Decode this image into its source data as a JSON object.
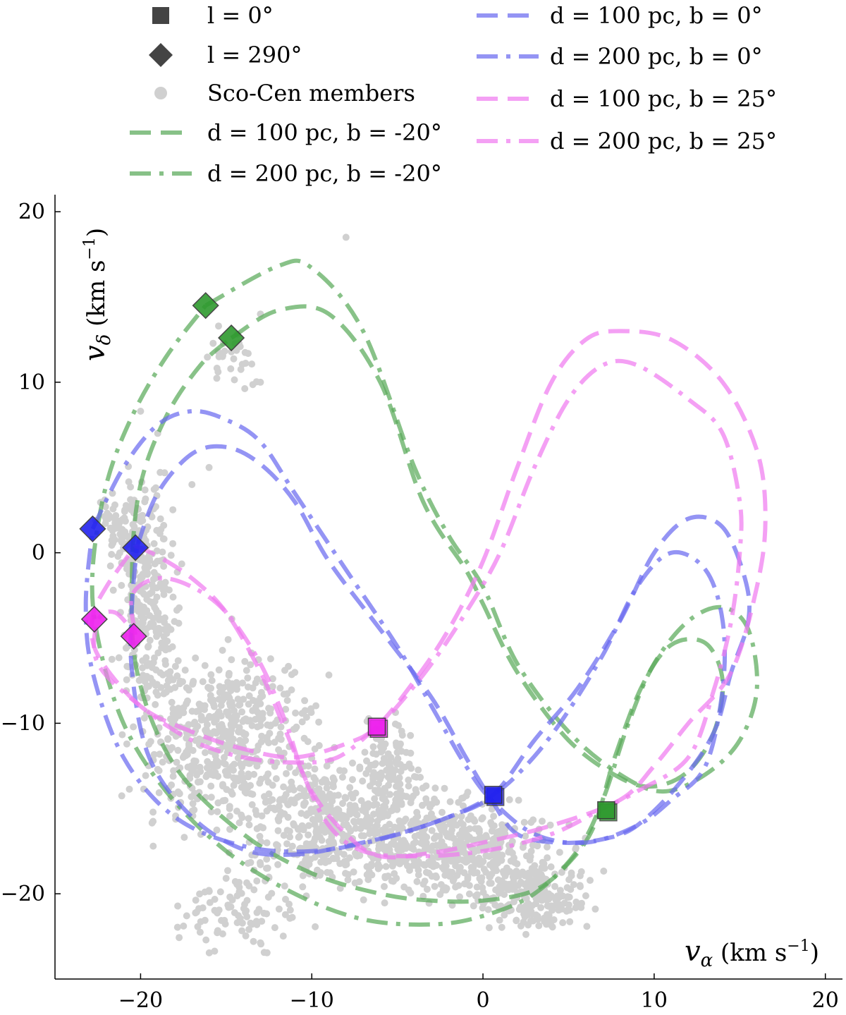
{
  "chart_data": {
    "type": "line",
    "title": "",
    "xlabel": {
      "symbol": "v",
      "sub": "α",
      "unit": "(km s",
      "sup": "−1",
      "close": ")"
    },
    "ylabel": {
      "symbol": "v",
      "sub": "δ",
      "unit": "(km s",
      "sup": "−1",
      "close": ")"
    },
    "xlim": [
      -25,
      21
    ],
    "ylim": [
      -25,
      21
    ],
    "x_ticks": [
      -20,
      -10,
      0,
      10,
      20
    ],
    "y_ticks": [
      -20,
      -10,
      0,
      10,
      20
    ],
    "x_tick_labels": [
      "−20",
      "−10",
      "0",
      "10",
      "20"
    ],
    "y_tick_labels": [
      "−20",
      "−10",
      "0",
      "10",
      "20"
    ],
    "grid": false,
    "legend_placement": "above plot, two columns",
    "colors": {
      "green": "#5aaa5a",
      "blue": "#6b6bf0",
      "magenta": "#f07cf0",
      "members": "#d0d0d0",
      "marker_green": "#2e9a2e",
      "marker_blue": "#2222ee",
      "marker_magenta": "#ee22ee"
    },
    "legend": [
      {
        "label": "l = 0°",
        "kind": "square"
      },
      {
        "label": "l = 290°",
        "kind": "diamond"
      },
      {
        "label": "Sco-Cen members",
        "kind": "dot"
      },
      {
        "label": "d = 100 pc, b = -20°",
        "kind": "dashed",
        "color": "green"
      },
      {
        "label": "d = 200 pc, b = -20°",
        "kind": "dashdot",
        "color": "green"
      },
      {
        "label": "d = 100 pc, b = 0°",
        "kind": "dashed",
        "color": "blue"
      },
      {
        "label": "d = 200 pc, b = 0°",
        "kind": "dashdot",
        "color": "blue"
      },
      {
        "label": "d = 100 pc, b = 25°",
        "kind": "dashed",
        "color": "magenta"
      },
      {
        "label": "d = 200 pc, b = 25°",
        "kind": "dashdot",
        "color": "magenta"
      }
    ],
    "series": [
      {
        "name": "d = 100 pc, b = -20°",
        "color": "green",
        "style": "dashed",
        "points": [
          [
            -14.7,
            12.6
          ],
          [
            -12,
            14.2
          ],
          [
            -9,
            14
          ],
          [
            -6,
            10
          ],
          [
            -3.5,
            3
          ],
          [
            -1,
            -1
          ],
          [
            0,
            -3
          ],
          [
            2,
            -7
          ],
          [
            5,
            -11
          ],
          [
            8,
            -13.2
          ],
          [
            10,
            -13.7
          ],
          [
            12,
            -12.8
          ],
          [
            13.5,
            -10.5
          ],
          [
            14,
            -7.5
          ],
          [
            13,
            -5.3
          ],
          [
            11,
            -5.4
          ],
          [
            9.3,
            -7.8
          ],
          [
            7.7,
            -12
          ],
          [
            6.5,
            -16
          ],
          [
            5,
            -18.2
          ],
          [
            3,
            -19.8
          ],
          [
            0,
            -20.4
          ],
          [
            -3,
            -20.4
          ],
          [
            -6,
            -20
          ],
          [
            -10,
            -18.8
          ],
          [
            -14,
            -16.5
          ],
          [
            -18,
            -12.5
          ],
          [
            -20.2,
            -7
          ],
          [
            -20.5,
            -1
          ],
          [
            -20,
            4
          ],
          [
            -18.5,
            8
          ],
          [
            -16.5,
            11
          ],
          [
            -14.7,
            12.6
          ]
        ]
      },
      {
        "name": "d = 200 pc, b = -20°",
        "color": "green",
        "style": "dashdot",
        "points": [
          [
            -16.2,
            14.5
          ],
          [
            -12,
            16.8
          ],
          [
            -10,
            16.7
          ],
          [
            -7,
            13
          ],
          [
            -4,
            5
          ],
          [
            -2,
            1
          ],
          [
            0,
            -2
          ],
          [
            2,
            -6.5
          ],
          [
            5,
            -10.5
          ],
          [
            8,
            -13
          ],
          [
            10.5,
            -14
          ],
          [
            13,
            -13
          ],
          [
            15,
            -11
          ],
          [
            16,
            -8
          ],
          [
            15.5,
            -4.5
          ],
          [
            14,
            -3.2
          ],
          [
            12,
            -4
          ],
          [
            10,
            -6.5
          ],
          [
            8.5,
            -10
          ],
          [
            7,
            -14.5
          ],
          [
            5.5,
            -17.5
          ],
          [
            3,
            -20
          ],
          [
            0,
            -21.3
          ],
          [
            -3,
            -21.8
          ],
          [
            -7,
            -21.5
          ],
          [
            -11,
            -20
          ],
          [
            -15,
            -17.5
          ],
          [
            -18.5,
            -14
          ],
          [
            -21,
            -10
          ],
          [
            -22.5,
            -5
          ],
          [
            -22.8,
            -1
          ],
          [
            -22,
            4
          ],
          [
            -20.5,
            8
          ],
          [
            -18.5,
            11.5
          ],
          [
            -16.2,
            14.5
          ]
        ]
      },
      {
        "name": "d = 100 pc, b = 0°",
        "color": "blue",
        "style": "dashed",
        "points": [
          [
            -20.2,
            0.4
          ],
          [
            -19,
            3.5
          ],
          [
            -17,
            5.8
          ],
          [
            -15,
            6.2
          ],
          [
            -13,
            5.2
          ],
          [
            -11,
            3
          ],
          [
            -9,
            -0.5
          ],
          [
            -6,
            -4.5
          ],
          [
            -3,
            -8.5
          ],
          [
            -1,
            -12
          ],
          [
            0.5,
            -14.5
          ],
          [
            2,
            -16.5
          ],
          [
            4.5,
            -17
          ],
          [
            7,
            -16.8
          ],
          [
            9,
            -16
          ],
          [
            11.5,
            -13.5
          ],
          [
            13.5,
            -10.5
          ],
          [
            14.5,
            -7
          ],
          [
            15.5,
            -4
          ],
          [
            15.3,
            -1.5
          ],
          [
            14,
            1.5
          ],
          [
            12,
            2
          ],
          [
            10,
            0
          ],
          [
            8,
            -4
          ],
          [
            5.5,
            -8
          ],
          [
            3,
            -11
          ],
          [
            0.6,
            -14.2
          ],
          [
            -2,
            -15.5
          ],
          [
            -5,
            -16.5
          ],
          [
            -8,
            -17.2
          ],
          [
            -11,
            -17.7
          ],
          [
            -14,
            -17.4
          ],
          [
            -17,
            -15.5
          ],
          [
            -19.5,
            -12
          ],
          [
            -20.5,
            -7
          ],
          [
            -20.5,
            -3
          ],
          [
            -20.2,
            0.4
          ]
        ]
      },
      {
        "name": "d = 200 pc, b = 0°",
        "color": "blue",
        "style": "dashdot",
        "points": [
          [
            -22.8,
            1.4
          ],
          [
            -21,
            5
          ],
          [
            -19,
            7.5
          ],
          [
            -17,
            8.3
          ],
          [
            -15,
            7.8
          ],
          [
            -13,
            6.5
          ],
          [
            -11,
            3.5
          ],
          [
            -8,
            -1
          ],
          [
            -5,
            -5.5
          ],
          [
            -3,
            -9
          ],
          [
            -1,
            -12.5
          ],
          [
            0.5,
            -14.5
          ],
          [
            3,
            -16.5
          ],
          [
            6,
            -17
          ],
          [
            9,
            -16
          ],
          [
            11,
            -14.5
          ],
          [
            13,
            -12.5
          ],
          [
            14,
            -8
          ],
          [
            14,
            -4
          ],
          [
            13,
            -1
          ],
          [
            11,
            0
          ],
          [
            9,
            -2
          ],
          [
            7,
            -6
          ],
          [
            4.5,
            -10
          ],
          [
            2.5,
            -12.5
          ],
          [
            0.6,
            -14.2
          ],
          [
            -2,
            -15.5
          ],
          [
            -6,
            -16.8
          ],
          [
            -10,
            -17.5
          ],
          [
            -14,
            -17.2
          ],
          [
            -18,
            -15.5
          ],
          [
            -21,
            -12
          ],
          [
            -22.8,
            -7
          ],
          [
            -23.2,
            -3
          ],
          [
            -22.8,
            1.4
          ]
        ]
      },
      {
        "name": "d = 100 pc, b = 25°",
        "color": "magenta",
        "style": "dashed",
        "points": [
          [
            -20.3,
            0.4
          ],
          [
            -19,
            -0.2
          ],
          [
            -17,
            -1.5
          ],
          [
            -15,
            -3.5
          ],
          [
            -13,
            -7
          ],
          [
            -11.5,
            -10.5
          ],
          [
            -10,
            -14
          ],
          [
            -8,
            -16.5
          ],
          [
            -6,
            -17.8
          ],
          [
            -3,
            -17.6
          ],
          [
            0,
            -17
          ],
          [
            4,
            -16
          ],
          [
            8,
            -14.5
          ],
          [
            10,
            -12.5
          ],
          [
            12,
            -10
          ],
          [
            14.5,
            -7
          ],
          [
            16,
            -2
          ],
          [
            16.5,
            2
          ],
          [
            16,
            6
          ],
          [
            14,
            10
          ],
          [
            11,
            12.5
          ],
          [
            8,
            13
          ],
          [
            6,
            12.5
          ],
          [
            4,
            10
          ],
          [
            2,
            5
          ],
          [
            0,
            -0.5
          ],
          [
            -2,
            -4.5
          ],
          [
            -4,
            -7.5
          ],
          [
            -6.2,
            -10.2
          ],
          [
            -8,
            -11.2
          ],
          [
            -11,
            -12
          ],
          [
            -14,
            -11.5
          ],
          [
            -17,
            -10.5
          ],
          [
            -20,
            -9
          ],
          [
            -22.5,
            -6
          ],
          [
            -22.8,
            -3.8
          ],
          [
            -22,
            -2
          ],
          [
            -20.3,
            0.4
          ]
        ]
      },
      {
        "name": "d = 200 pc, b = 25°",
        "color": "magenta",
        "style": "dashdot",
        "points": [
          [
            -20.3,
            -4.8
          ],
          [
            -20.5,
            -2.5
          ],
          [
            -19,
            -1.5
          ],
          [
            -17,
            -2
          ],
          [
            -15,
            -3.5
          ],
          [
            -13,
            -6.5
          ],
          [
            -11.5,
            -10
          ],
          [
            -10.5,
            -13
          ],
          [
            -9,
            -16
          ],
          [
            -7,
            -17.5
          ],
          [
            -4,
            -17.8
          ],
          [
            0,
            -17.5
          ],
          [
            4,
            -16.5
          ],
          [
            7,
            -15
          ],
          [
            9,
            -14
          ],
          [
            12,
            -12
          ],
          [
            13.5,
            -8
          ],
          [
            14.5,
            -4
          ],
          [
            15,
            0
          ],
          [
            15,
            3
          ],
          [
            14,
            7
          ],
          [
            12,
            9
          ],
          [
            9,
            11
          ],
          [
            7,
            11
          ],
          [
            5,
            9
          ],
          [
            3,
            5
          ],
          [
            1,
            0
          ],
          [
            -1,
            -3.5
          ],
          [
            -3,
            -6.5
          ],
          [
            -5,
            -9
          ],
          [
            -6.2,
            -10.2
          ],
          [
            -8.5,
            -12
          ],
          [
            -11,
            -12.3
          ],
          [
            -14,
            -12
          ],
          [
            -17,
            -11
          ],
          [
            -20,
            -9
          ],
          [
            -22.5,
            -6.5
          ],
          [
            -22.5,
            -4
          ],
          [
            -21.5,
            -3.5
          ],
          [
            -20.3,
            -4.8
          ]
        ]
      }
    ],
    "markers": [
      {
        "shape": "diamond",
        "color": "marker_green",
        "x": -16.2,
        "y": 14.5
      },
      {
        "shape": "diamond",
        "color": "marker_green",
        "x": -14.7,
        "y": 12.6
      },
      {
        "shape": "diamond",
        "color": "marker_blue",
        "x": -22.8,
        "y": 1.4
      },
      {
        "shape": "diamond",
        "color": "marker_blue",
        "x": -20.3,
        "y": 0.3
      },
      {
        "shape": "diamond",
        "color": "marker_magenta",
        "x": -22.7,
        "y": -3.9
      },
      {
        "shape": "diamond",
        "color": "marker_magenta",
        "x": -20.4,
        "y": -4.9
      },
      {
        "shape": "square",
        "color": "marker_magenta",
        "x": -6.2,
        "y": -10.2
      },
      {
        "shape": "square",
        "color": "marker_blue",
        "x": 0.6,
        "y": -14.2
      },
      {
        "shape": "square",
        "color": "marker_green",
        "x": 7.2,
        "y": -15.1
      }
    ],
    "members_region": {
      "description_ranges": "Sco-Cen members cloud",
      "clusters": [
        {
          "cx": -19.5,
          "cy": -3,
          "sx": 1.2,
          "sy": 4.5,
          "n": 260
        },
        {
          "cx": -15,
          "cy": -11,
          "sx": 3.5,
          "sy": 3.5,
          "n": 520
        },
        {
          "cx": -8,
          "cy": -16,
          "sx": 4.5,
          "sy": 2.5,
          "n": 520
        },
        {
          "cx": -1,
          "cy": -17.5,
          "sx": 3.5,
          "sy": 2,
          "n": 360
        },
        {
          "cx": 3,
          "cy": -20,
          "sx": 2.2,
          "sy": 1.5,
          "n": 220
        },
        {
          "cx": -5.5,
          "cy": -12.5,
          "sx": 1,
          "sy": 2,
          "n": 100
        },
        {
          "cx": -14.5,
          "cy": 11.5,
          "sx": 1.2,
          "sy": 1.5,
          "n": 30
        },
        {
          "cx": -21,
          "cy": 1.5,
          "sx": 1,
          "sy": 1.5,
          "n": 80
        },
        {
          "cx": -14,
          "cy": -21,
          "sx": 2.5,
          "sy": 1.5,
          "n": 90
        }
      ],
      "outliers": [
        [
          -8,
          18.5
        ],
        [
          -13,
          10
        ],
        [
          -19,
          7
        ],
        [
          -17,
          4
        ],
        [
          -20,
          8.3
        ],
        [
          -16,
          5
        ],
        [
          -13,
          14
        ]
      ]
    }
  }
}
